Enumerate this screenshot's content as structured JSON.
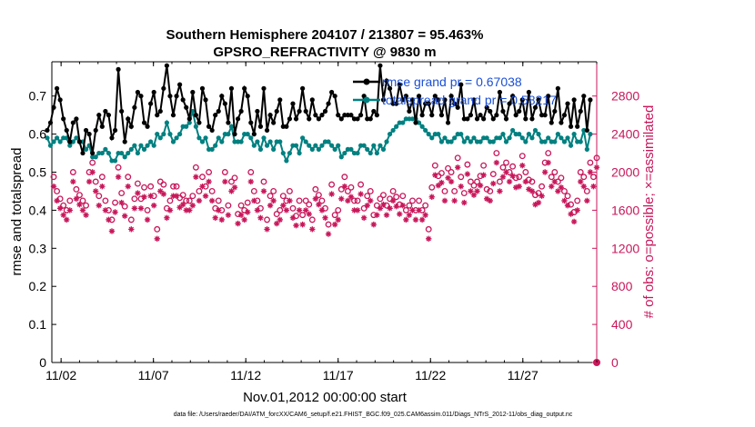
{
  "chart_data": {
    "type": "line",
    "title_line1": "Southern Hemisphere 204107 / 213807 = 95.463%",
    "title_line2": "GPSRO_REFRACTIVITY @ 9830 m",
    "xlabel": "Nov.01,2012 00:00:00 start",
    "ylabel_left": "rmse and totalspread",
    "ylabel_right": "# of obs: o=possible; ×=assimilated",
    "footnote": "data file: /Users/raeder/DAI/ATM_forcXX/CAM6_setup/f.e21.FHIST_BGC.f09_025.CAM6assim.011/Diags_NTrS_2012-11/obs_diag_output.nc",
    "x_ticks": [
      "11/02",
      "11/07",
      "11/12",
      "11/17",
      "11/22",
      "11/27"
    ],
    "x_tick_days": [
      2,
      7,
      12,
      17,
      22,
      27
    ],
    "xlim_days": [
      1.5,
      31.0
    ],
    "y_left_ticks": [
      "0",
      "0.1",
      "0.2",
      "0.3",
      "0.4",
      "0.5",
      "0.6",
      "0.7"
    ],
    "y_left_lim": [
      0,
      0.79
    ],
    "y_right_ticks": [
      "0",
      "400",
      "800",
      "1200",
      "1600",
      "2000",
      "2400",
      "2800"
    ],
    "y_right_lim": [
      0,
      3160
    ],
    "colors": {
      "rmse": "#000000",
      "spread": "#008080",
      "obs": "#c8175a",
      "legend_text": "#1a4fd6"
    },
    "legend_placement": "top-right",
    "series": [
      {
        "name": "rmse grand pr = 0.67038",
        "color": "#000000",
        "values": [
          0.61,
          0.63,
          0.67,
          0.72,
          0.69,
          0.64,
          0.61,
          0.58,
          0.63,
          0.64,
          0.58,
          0.55,
          0.61,
          0.6,
          0.55,
          0.61,
          0.65,
          0.62,
          0.66,
          0.65,
          0.59,
          0.61,
          0.77,
          0.66,
          0.58,
          0.64,
          0.62,
          0.67,
          0.71,
          0.7,
          0.63,
          0.62,
          0.68,
          0.71,
          0.65,
          0.66,
          0.72,
          0.78,
          0.7,
          0.65,
          0.7,
          0.73,
          0.69,
          0.67,
          0.64,
          0.71,
          0.65,
          0.63,
          0.72,
          0.69,
          0.62,
          0.61,
          0.65,
          0.66,
          0.7,
          0.68,
          0.63,
          0.72,
          0.6,
          0.64,
          0.66,
          0.72,
          0.7,
          0.63,
          0.6,
          0.66,
          0.62,
          0.72,
          0.61,
          0.65,
          0.63,
          0.66,
          0.69,
          0.62,
          0.62,
          0.64,
          0.68,
          0.64,
          0.66,
          0.72,
          0.66,
          0.64,
          0.69,
          0.65,
          0.64,
          0.65,
          0.66,
          0.68,
          0.71,
          0.7,
          0.65,
          0.64,
          0.65,
          0.65,
          0.65,
          0.64,
          0.64,
          0.65,
          0.7,
          0.64,
          0.64,
          0.66,
          0.65,
          0.78,
          0.69,
          0.74,
          0.72,
          0.68,
          0.68,
          0.73,
          0.69,
          0.7,
          0.66,
          0.69,
          0.63,
          0.7,
          0.65,
          0.68,
          0.68,
          0.65,
          0.7,
          0.69,
          0.65,
          0.69,
          0.63,
          0.7,
          0.68,
          0.67,
          0.73,
          0.64,
          0.64,
          0.65,
          0.69,
          0.64,
          0.65,
          0.64,
          0.67,
          0.66,
          0.64,
          0.65,
          0.71,
          0.66,
          0.64,
          0.68,
          0.7,
          0.65,
          0.66,
          0.69,
          0.64,
          0.71,
          0.64,
          0.67,
          0.69,
          0.65,
          0.65,
          0.7,
          0.63,
          0.66,
          0.72,
          0.63,
          0.65,
          0.68,
          0.62,
          0.69,
          0.62,
          0.66,
          0.7,
          0.61,
          0.69
        ]
      },
      {
        "name": "totalspread grand pr = 0.58217",
        "color": "#008080",
        "values": [
          0.59,
          0.57,
          0.58,
          0.59,
          0.58,
          0.59,
          0.59,
          0.57,
          0.58,
          0.59,
          0.58,
          0.58,
          0.56,
          0.57,
          0.54,
          0.54,
          0.55,
          0.55,
          0.56,
          0.55,
          0.53,
          0.53,
          0.55,
          0.55,
          0.54,
          0.55,
          0.56,
          0.57,
          0.55,
          0.57,
          0.56,
          0.57,
          0.58,
          0.57,
          0.6,
          0.59,
          0.6,
          0.63,
          0.6,
          0.58,
          0.59,
          0.6,
          0.62,
          0.62,
          0.63,
          0.66,
          0.62,
          0.59,
          0.58,
          0.59,
          0.56,
          0.56,
          0.57,
          0.59,
          0.58,
          0.6,
          0.6,
          0.62,
          0.58,
          0.58,
          0.58,
          0.6,
          0.6,
          0.59,
          0.57,
          0.58,
          0.56,
          0.59,
          0.57,
          0.58,
          0.56,
          0.58,
          0.58,
          0.55,
          0.53,
          0.55,
          0.57,
          0.57,
          0.55,
          0.59,
          0.58,
          0.57,
          0.56,
          0.57,
          0.56,
          0.57,
          0.58,
          0.58,
          0.57,
          0.56,
          0.57,
          0.54,
          0.55,
          0.56,
          0.56,
          0.55,
          0.55,
          0.57,
          0.57,
          0.56,
          0.55,
          0.57,
          0.55,
          0.57,
          0.56,
          0.58,
          0.6,
          0.61,
          0.62,
          0.63,
          0.63,
          0.64,
          0.64,
          0.64,
          0.64,
          0.63,
          0.62,
          0.61,
          0.6,
          0.59,
          0.6,
          0.6,
          0.58,
          0.59,
          0.58,
          0.58,
          0.59,
          0.6,
          0.6,
          0.58,
          0.59,
          0.58,
          0.59,
          0.58,
          0.58,
          0.59,
          0.59,
          0.58,
          0.58,
          0.59,
          0.59,
          0.6,
          0.58,
          0.59,
          0.61,
          0.6,
          0.6,
          0.59,
          0.58,
          0.6,
          0.59,
          0.61,
          0.6,
          0.58,
          0.58,
          0.59,
          0.58,
          0.58,
          0.6,
          0.59,
          0.58,
          0.59,
          0.57,
          0.6,
          0.58,
          0.58,
          0.61,
          0.56,
          0.6
        ]
      },
      {
        "name": "possible",
        "color": "#c8175a",
        "values": [
          1850,
          2000,
          1950,
          1800,
          1720,
          1650,
          1600,
          1700,
          2000,
          1820,
          1760,
          1700,
          1650,
          2000,
          2100,
          1900,
          1750,
          1950,
          1700,
          1600,
          1500,
          1680,
          2050,
          1780,
          1640,
          1950,
          1500,
          1720,
          1880,
          1720,
          1840,
          1600,
          1850,
          1750,
          1400,
          1900,
          1870,
          1620,
          1700,
          1850,
          1850,
          1730,
          1760,
          1700,
          1700,
          1750,
          2050,
          1800,
          1950,
          1850,
          2000,
          1800,
          1620,
          1700,
          1600,
          2000,
          1650,
          1900,
          1940,
          1560,
          1650,
          1600,
          1680,
          2000,
          1800,
          1700,
          1620,
          1900,
          1500,
          1750,
          1800,
          1560,
          1600,
          1750,
          1700,
          1800,
          1620,
          1540,
          1700,
          1550,
          1700,
          1660,
          1500,
          1820,
          1760,
          1700,
          1620,
          1450,
          1870,
          1550,
          1600,
          1820,
          1950,
          1800,
          1840,
          1700,
          1700,
          1870,
          1620,
          1750,
          1800,
          1550,
          1650,
          1720,
          1760,
          1650,
          1720,
          1800,
          1740,
          1660,
          1750,
          1600,
          1650,
          1700,
          1600,
          1700,
          1600,
          1650,
          1400,
          1840,
          2070,
          1960,
          1990,
          1800,
          2040,
          2000,
          1800,
          2150,
          1950,
          1780,
          2080,
          1900,
          1860,
          1900,
          1960,
          2070,
          1820,
          1800,
          1980,
          2200,
          1900,
          2050,
          2100,
          2000,
          2060,
          1940,
          1950,
          2170,
          2000,
          1920,
          1900,
          1760,
          1780,
          1850,
          2100,
          2200,
          1950,
          2000,
          1900,
          1940,
          1800,
          1750,
          1660,
          1580,
          1700,
          2000,
          1950,
          1800,
          2100,
          1950,
          2150,
          2050,
          2250
        ]
      },
      {
        "name": "assimilated",
        "color": "#c8175a",
        "values": [
          1740,
          1900,
          1850,
          1700,
          1620,
          1550,
          1500,
          1600,
          1900,
          1720,
          1660,
          1600,
          1550,
          1900,
          2000,
          1800,
          1650,
          1850,
          1600,
          1500,
          1380,
          1580,
          1950,
          1680,
          1540,
          1850,
          1400,
          1620,
          1780,
          1620,
          1740,
          1500,
          1750,
          1650,
          1300,
          1800,
          1770,
          1520,
          1600,
          1750,
          1750,
          1630,
          1660,
          1600,
          1600,
          1650,
          1950,
          1700,
          1850,
          1750,
          1900,
          1700,
          1520,
          1600,
          1500,
          1900,
          1550,
          1800,
          1840,
          1460,
          1550,
          1500,
          1580,
          1900,
          1700,
          1600,
          1520,
          1800,
          1400,
          1650,
          1700,
          1460,
          1500,
          1650,
          1600,
          1700,
          1520,
          1440,
          1600,
          1450,
          1600,
          1560,
          1400,
          1720,
          1660,
          1600,
          1520,
          1350,
          1770,
          1450,
          1500,
          1720,
          1850,
          1700,
          1740,
          1600,
          1600,
          1770,
          1520,
          1650,
          1700,
          1450,
          1550,
          1620,
          1660,
          1550,
          1620,
          1700,
          1640,
          1560,
          1650,
          1500,
          1550,
          1600,
          1500,
          1600,
          1500,
          1550,
          1300,
          1740,
          1970,
          1860,
          1890,
          1700,
          1940,
          1900,
          1700,
          2050,
          1850,
          1680,
          1980,
          1800,
          1760,
          1800,
          1860,
          1970,
          1720,
          1700,
          1880,
          2100,
          1800,
          1950,
          2000,
          1900,
          1960,
          1840,
          1850,
          2070,
          1900,
          1820,
          1800,
          1660,
          1680,
          1750,
          2000,
          2100,
          1850,
          1900,
          1800,
          1840,
          1700,
          1650,
          1560,
          1480,
          1600,
          1900,
          1850,
          1700,
          2000,
          1850,
          2050,
          1950,
          2150
        ]
      }
    ]
  }
}
